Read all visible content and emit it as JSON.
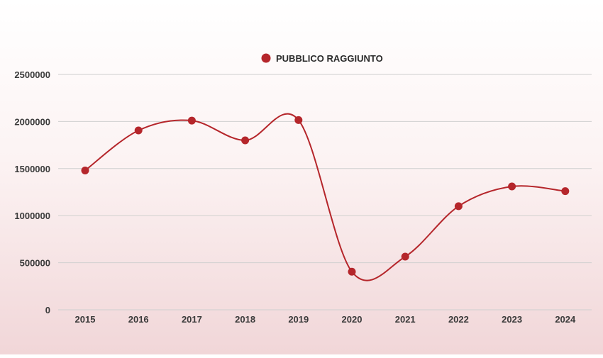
{
  "chart_data": {
    "type": "line",
    "categories": [
      "2015",
      "2016",
      "2017",
      "2018",
      "2019",
      "2020",
      "2021",
      "2022",
      "2023",
      "2024"
    ],
    "series": [
      {
        "name": "PUBBLICO RAGGIUNTO",
        "values": [
          1480000,
          1905000,
          2010000,
          1800000,
          2015000,
          405000,
          565000,
          1100000,
          1310000,
          1260000
        ],
        "color": "#b5262b"
      }
    ],
    "yticks": [
      "0",
      "500000",
      "1000000",
      "1500000",
      "2000000",
      "2500000"
    ],
    "ylim": [
      0,
      2500000
    ],
    "grid": true,
    "legend_position": "top-center",
    "colors": {
      "line": "#b5262b",
      "marker": "#b5262b",
      "grid": "#cfcfcf",
      "axis_text": "#3a3a3a"
    }
  }
}
